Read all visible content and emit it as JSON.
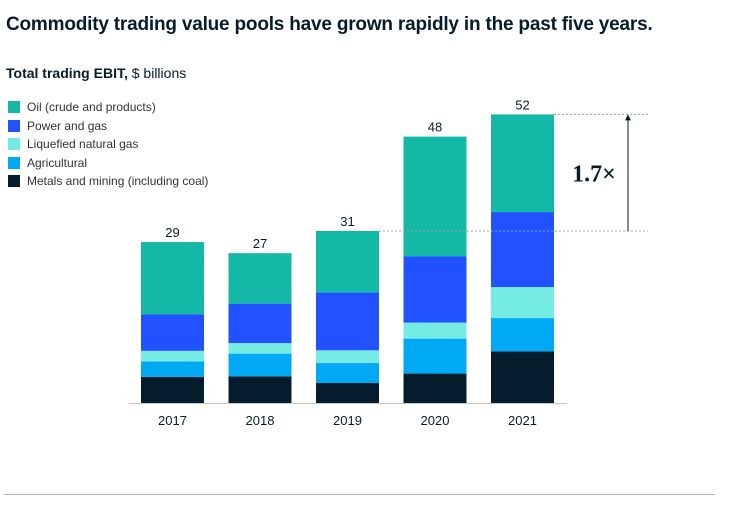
{
  "headline": "Commodity trading value pools have grown rapidly in the past five years.",
  "subtitle": {
    "strong": "Total trading EBIT,",
    "rest": " $ billions"
  },
  "chart_data": {
    "type": "bar",
    "stacked": true,
    "categories": [
      "2017",
      "2018",
      "2019",
      "2020",
      "2021"
    ],
    "totals": [
      29,
      27,
      31,
      48,
      52
    ],
    "ylim": [
      0,
      52
    ],
    "grid": false,
    "legend_position": "top-left",
    "series": [
      {
        "name": "Metals and mining (including coal)",
        "color": "#051c2c",
        "values": [
          4.7,
          4.8,
          3.6,
          5.3,
          9.3
        ]
      },
      {
        "name": "Agricultural",
        "color": "#00a9f4",
        "values": [
          2.8,
          4.1,
          3.6,
          6.3,
          6.0
        ]
      },
      {
        "name": "Liquefied natural gas",
        "color": "#74ece4",
        "values": [
          1.9,
          1.9,
          2.3,
          2.9,
          5.6
        ]
      },
      {
        "name": "Power and gas",
        "color": "#2251ff",
        "values": [
          6.6,
          7.1,
          10.4,
          11.9,
          13.5
        ]
      },
      {
        "name": "Oil (crude and products)",
        "color": "#14b8a6",
        "values": [
          13.0,
          9.1,
          11.1,
          21.6,
          17.6
        ]
      }
    ],
    "annotation": {
      "text": "1.7×",
      "from": 31,
      "to": 52
    }
  }
}
